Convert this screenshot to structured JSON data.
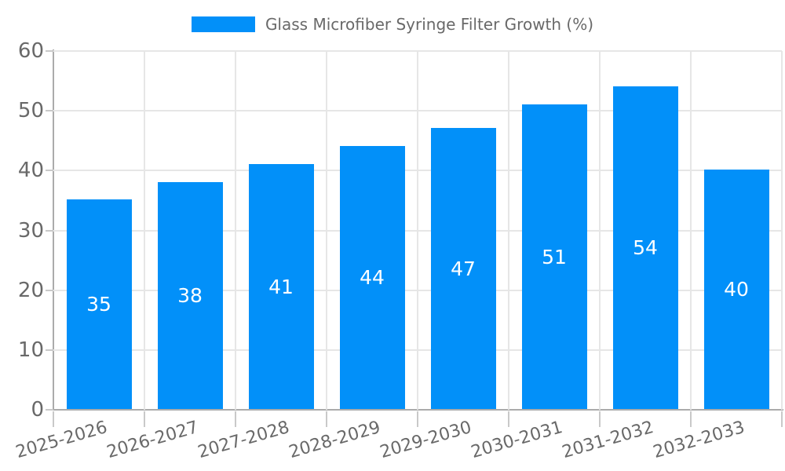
{
  "chart_data": {
    "type": "bar",
    "title": "Glass Microfiber Syringe Filter Growth (%)",
    "categories": [
      "2025-2026",
      "2026-2027",
      "2027-2028",
      "2028-2029",
      "2029-2030",
      "2030-2031",
      "2031-2032",
      "2032-2033"
    ],
    "values": [
      35,
      38,
      41,
      44,
      47,
      51,
      54,
      40
    ],
    "value_labels": [
      "35",
      "38",
      "41",
      "44",
      "47",
      "51",
      "54",
      "40"
    ],
    "xlabel": "",
    "ylabel": "",
    "ylim": [
      0,
      60
    ],
    "ytick_step": 10,
    "ytick_labels": [
      "0",
      "10",
      "20",
      "30",
      "40",
      "50",
      "60"
    ],
    "grid": true,
    "legend_position": "top-center",
    "colors": {
      "bar": "#0290F9",
      "grid": "#e6e6e6",
      "axis": "#ababab",
      "tick": "#c9c9c9",
      "text": "#696969",
      "value_label": "#ffffff"
    }
  }
}
